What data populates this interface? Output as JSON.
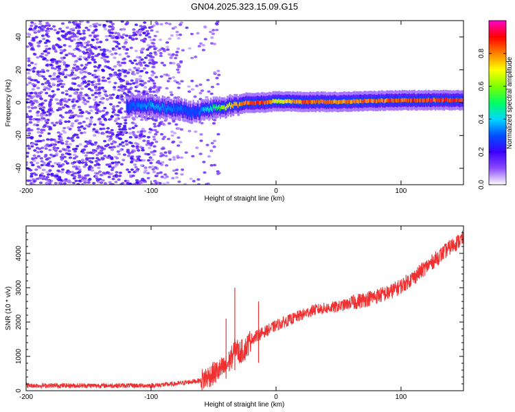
{
  "figure_title": "GN04.2025.323.15.09.G15",
  "chart_data": [
    {
      "type": "heatmap",
      "xlabel": "Height of straight line (km)",
      "ylabel": "Frequency (Hz)",
      "xlim": [
        -200,
        150
      ],
      "ylim": [
        -50,
        50
      ],
      "xticks": [
        -200,
        -100,
        0,
        100
      ],
      "yticks": [
        -40,
        -20,
        0,
        20,
        40
      ],
      "colorbar": {
        "label": "Normalized spectral amplitude",
        "range": [
          0,
          1
        ],
        "ticks": [
          0.0,
          0.2,
          0.4,
          0.6,
          0.8
        ],
        "colormap": [
          "#ffffff",
          "#6a00ff",
          "#0000ff",
          "#00e5ff",
          "#00ff00",
          "#ffff00",
          "#ff6a00",
          "#ff0000",
          "#ff00c0"
        ]
      },
      "ridge": {
        "x": [
          -120,
          -100,
          -80,
          -65,
          -55,
          -45,
          -35,
          -25,
          -10,
          0,
          20,
          50,
          100,
          150
        ],
        "freq_hz": [
          -2,
          -2,
          -4,
          -6,
          -4,
          -3,
          -2,
          0,
          0,
          1,
          0.5,
          0.5,
          1.5,
          1.5
        ],
        "peak_amplitude": [
          0.3,
          0.4,
          0.35,
          0.3,
          0.45,
          0.6,
          0.8,
          0.9,
          0.95,
          0.7,
          0.9,
          0.85,
          0.9,
          0.95
        ]
      },
      "noise_floor_region": {
        "x": [
          -200,
          -55
        ],
        "amplitude": [
          0.05,
          0.25
        ]
      }
    },
    {
      "type": "line",
      "xlabel": "Height of straight line (km)",
      "ylabel": "SNR (10 * v/v)",
      "xlim": [
        -200,
        150
      ],
      "ylim": [
        0,
        4800
      ],
      "xticks": [
        -200,
        -100,
        0,
        100
      ],
      "yticks": [
        0,
        1000,
        2000,
        3000,
        4000
      ],
      "series": [
        {
          "name": "SNR",
          "color": "#f03030",
          "x": [
            -200,
            -150,
            -100,
            -80,
            -60,
            -50,
            -40,
            -35,
            -32,
            -30,
            -25,
            -20,
            -15,
            -10,
            -5,
            0,
            10,
            20,
            30,
            40,
            50,
            60,
            70,
            80,
            90,
            100,
            110,
            120,
            130,
            140,
            150
          ],
          "y": [
            150,
            150,
            150,
            200,
            300,
            500,
            700,
            1000,
            1300,
            1100,
            1200,
            1500,
            1600,
            1700,
            1800,
            1900,
            2050,
            2200,
            2350,
            2400,
            2450,
            2550,
            2650,
            2750,
            2850,
            3050,
            3300,
            3600,
            3900,
            4200,
            4450
          ]
        }
      ],
      "spikes": [
        {
          "x": -33,
          "y": 3000
        },
        {
          "x": -40,
          "y": 2100
        },
        {
          "x": -14,
          "y": 2600
        }
      ]
    }
  ]
}
